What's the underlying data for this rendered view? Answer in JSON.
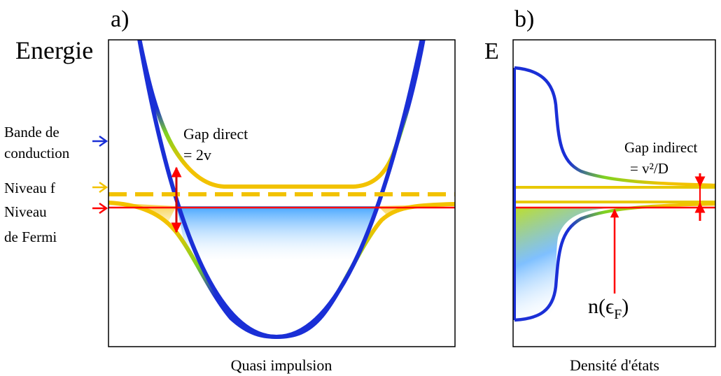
{
  "panel_a": {
    "label": "a)",
    "y_axis_label": "Energie",
    "x_axis_label": "Quasi impulsion",
    "legend": {
      "conduction_band": "Bande de conduction",
      "f_level": "Niveau f",
      "fermi_level": "Niveau de Fermi"
    },
    "gap_label_line1": "Gap direct",
    "gap_label_line2": "= 2v"
  },
  "panel_b": {
    "label": "b)",
    "y_axis_label": "E",
    "x_axis_label": "Densité d'états",
    "gap_label_line1": "Gap indirect",
    "gap_label_line2": "= v²/D",
    "dos_label": "n(ϵF)"
  },
  "colors": {
    "conduction_band": "#1a2fd6",
    "f_level": "#f2c200",
    "fermi_level": "#ff0000",
    "hybrid_mid": "#7ed321",
    "filled_states": "#3aa0ff"
  }
}
